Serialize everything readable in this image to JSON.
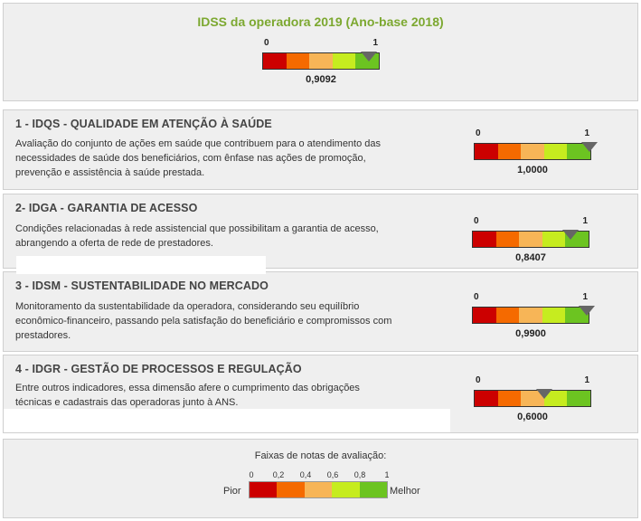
{
  "overall": {
    "title": "IDSS da operadora 2019 (Ano-base 2018)",
    "min_label": "0",
    "max_label": "1",
    "value": 0.9092,
    "value_text": "0,9092"
  },
  "dimensions": [
    {
      "title": "1 - IDQS - QUALIDADE EM ATENÇÃO À SAÚDE",
      "description_lines": [
        "Avaliação do conjunto de ações em saúde que contribuem para o atendimento das",
        "necessidades de saúde dos beneficiários, com ênfase nas ações de promoção,",
        "prevenção e assistência à saúde prestada."
      ],
      "min_label": "0",
      "max_label": "1",
      "value": 1.0,
      "value_text": "1,0000"
    },
    {
      "title": "2- IDGA - GARANTIA DE ACESSO",
      "description_lines": [
        "Condições relacionadas à rede assistencial que possibilitam a garantia de acesso,",
        "abrangendo a oferta de rede de prestadores."
      ],
      "min_label": "0",
      "max_label": "1",
      "value": 0.8407,
      "value_text": "0,8407"
    },
    {
      "title": "3 - IDSM - SUSTENTABILIDADE NO MERCADO",
      "description_lines": [
        "Monitoramento da sustentabilidade da operadora, considerando seu equilíbrio",
        "econômico-financeiro, passando pela satisfação do beneficiário e compromissos com",
        "prestadores."
      ],
      "min_label": "0",
      "max_label": "1",
      "value": 0.99,
      "value_text": "0,9900"
    },
    {
      "title": "4 - IDGR - GESTÃO DE PROCESSOS E REGULAÇÃO",
      "description_lines": [
        "Entre outros indicadores, essa dimensão afere o cumprimento das obrigações",
        "técnicas e cadastrais das operadoras junto à ANS."
      ],
      "min_label": "0",
      "max_label": "1",
      "value": 0.6,
      "value_text": "0,6000"
    }
  ],
  "legend": {
    "title": "Faixas de notas de avaliação:",
    "ticks": [
      "0",
      "0,2",
      "0,4",
      "0,6",
      "0,8",
      "1"
    ],
    "worst_label": "Pior",
    "best_label": "Melhor"
  },
  "colors": {
    "band_0_02": "#cc0000",
    "band_02_04": "#f56a00",
    "band_04_06": "#f7b557",
    "band_06_08": "#c6ec1f",
    "band_08_1": "#6cc421",
    "title_accent": "#7ca830",
    "marker": "#666666"
  }
}
